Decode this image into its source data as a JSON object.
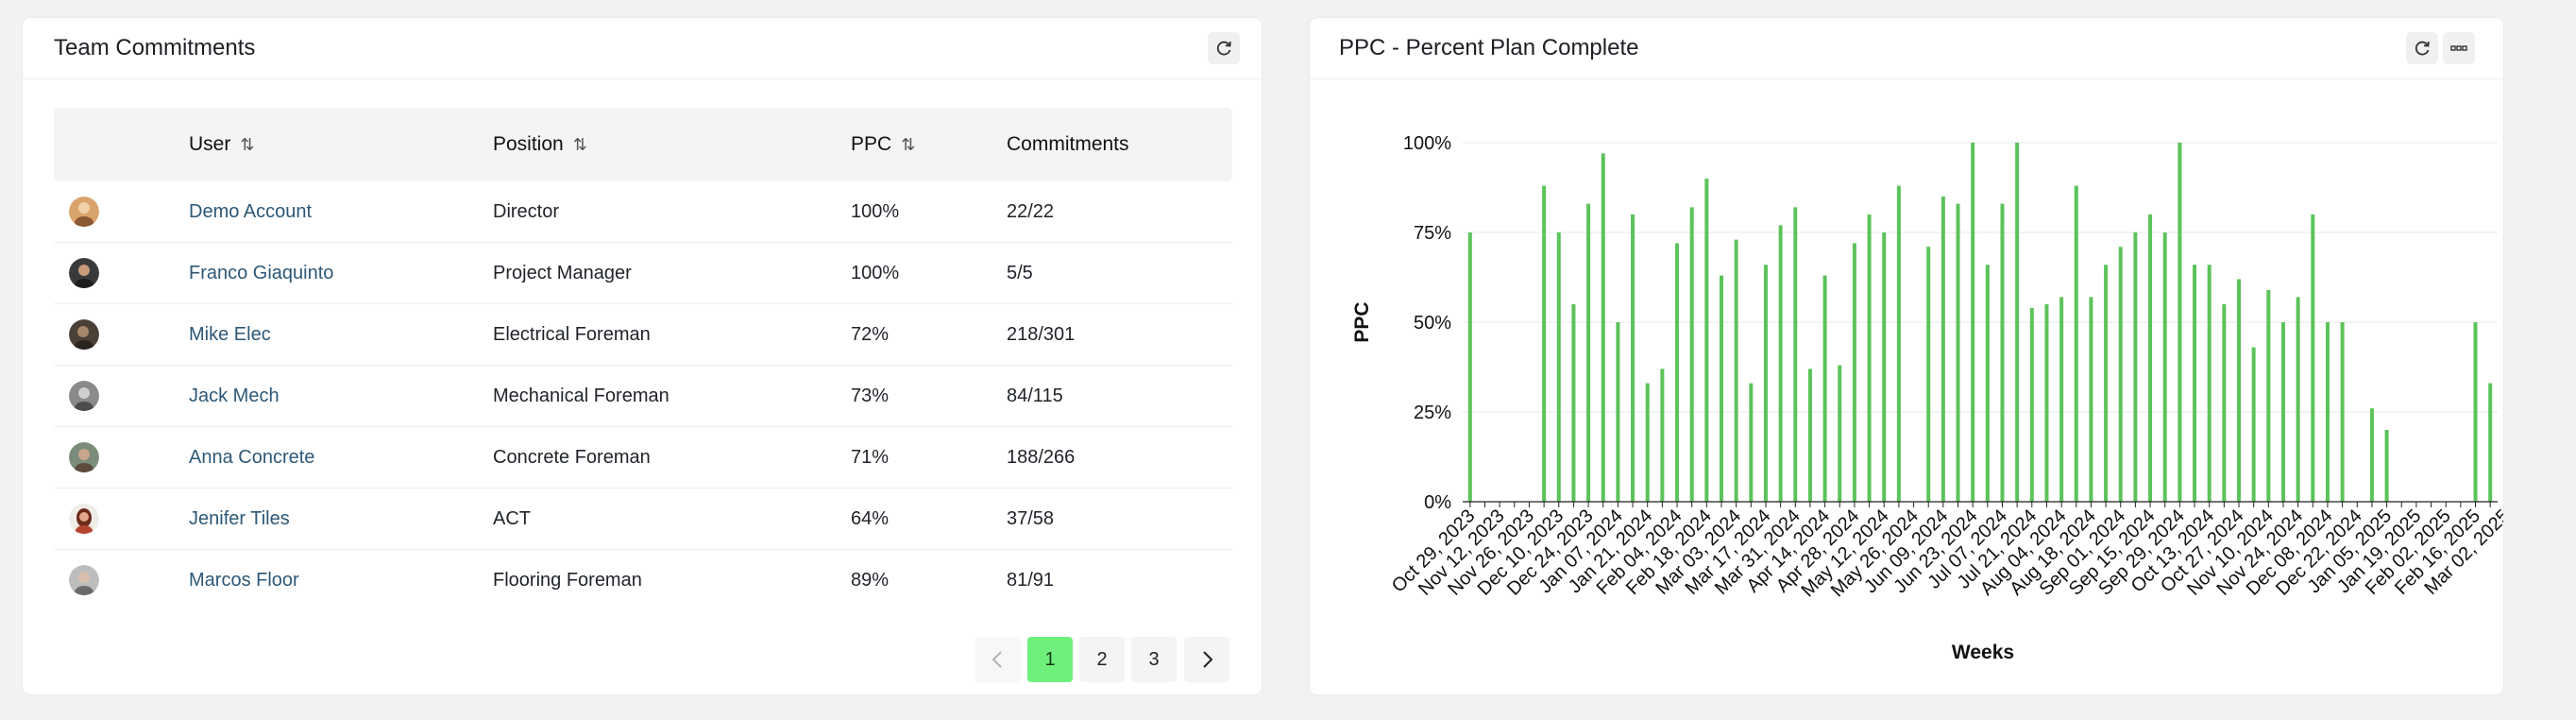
{
  "team_commitments": {
    "title": "Team Commitments",
    "refresh_icon": "refresh-icon",
    "columns": {
      "user": "User",
      "position": "Position",
      "ppc": "PPC",
      "commitments": "Commitments"
    },
    "rows": [
      {
        "user": "Demo Account",
        "position": "Director",
        "ppc": "100%",
        "commitments": "22/22",
        "avatar_color": "#d9a46b"
      },
      {
        "user": "Franco Giaquinto",
        "position": "Project Manager",
        "ppc": "100%",
        "commitments": "5/5",
        "avatar_color": "#3a3a3a"
      },
      {
        "user": "Mike Elec",
        "position": "Electrical Foreman",
        "ppc": "72%",
        "commitments": "218/301",
        "avatar_color": "#4a4036"
      },
      {
        "user": "Jack Mech",
        "position": "Mechanical Foreman",
        "ppc": "73%",
        "commitments": "84/115",
        "avatar_color": "#6d6d6d"
      },
      {
        "user": "Anna Concrete",
        "position": "Concrete Foreman",
        "ppc": "71%",
        "commitments": "188/266",
        "avatar_color": "#7c8c7a"
      },
      {
        "user": "Jenifer Tiles",
        "position": "ACT",
        "ppc": "64%",
        "commitments": "37/58",
        "avatar_color": "#b3452f"
      },
      {
        "user": "Marcos Floor",
        "position": "Flooring Foreman",
        "ppc": "89%",
        "commitments": "81/91",
        "avatar_color": "#8a8a8a"
      }
    ],
    "pagination": {
      "pages": [
        "1",
        "2",
        "3"
      ],
      "active": "1",
      "prev_icon": "chevron-left-icon",
      "next_icon": "chevron-right-icon"
    }
  },
  "ppc_chart": {
    "title": "PPC - Percent Plan Complete",
    "refresh_icon": "refresh-icon",
    "menu_icon": "more-icon",
    "bar_color": "#5cc35a",
    "chart_data": {
      "type": "bar",
      "ylabel": "PPC",
      "xlabel": "Weeks",
      "ylim": [
        0,
        100
      ],
      "y_ticks": [
        "0%",
        "25%",
        "50%",
        "75%",
        "100%"
      ],
      "x_tick_labels": [
        "Oct 29, 2023",
        "Nov 12, 2023",
        "Nov 26, 2023",
        "Dec 10, 2023",
        "Dec 24, 2023",
        "Jan 07, 2024",
        "Jan 21, 2024",
        "Feb 04, 2024",
        "Feb 18, 2024",
        "Mar 03, 2024",
        "Mar 17, 2024",
        "Mar 31, 2024",
        "Apr 14, 2024",
        "Apr 28, 2024",
        "May 12, 2024",
        "May 26, 2024",
        "Jun 09, 2024",
        "Jun 23, 2024",
        "Jul 07, 2024",
        "Jul 21, 2024",
        "Aug 04, 2024",
        "Aug 18, 2024",
        "Sep 01, 2024",
        "Sep 15, 2024",
        "Sep 29, 2024",
        "Oct 13, 2024",
        "Oct 27, 2024",
        "Nov 10, 2024",
        "Nov 24, 2024",
        "Dec 08, 2024",
        "Dec 22, 2024",
        "Jan 05, 2025",
        "Jan 19, 2025",
        "Feb 02, 2025",
        "Feb 16, 2025",
        "Mar 02, 2025"
      ],
      "values": [
        75,
        0,
        0,
        0,
        0,
        88,
        75,
        55,
        83,
        97,
        50,
        80,
        33,
        37,
        72,
        82,
        90,
        63,
        73,
        33,
        66,
        77,
        82,
        37,
        63,
        38,
        72,
        80,
        75,
        88,
        0,
        71,
        85,
        83,
        100,
        66,
        83,
        100,
        54,
        55,
        57,
        88,
        57,
        66,
        71,
        75,
        80,
        75,
        100,
        66,
        66,
        55,
        62,
        43,
        59,
        50,
        57,
        80,
        50,
        50,
        0,
        26,
        20,
        0,
        0,
        0,
        0,
        0,
        50,
        33
      ]
    }
  }
}
